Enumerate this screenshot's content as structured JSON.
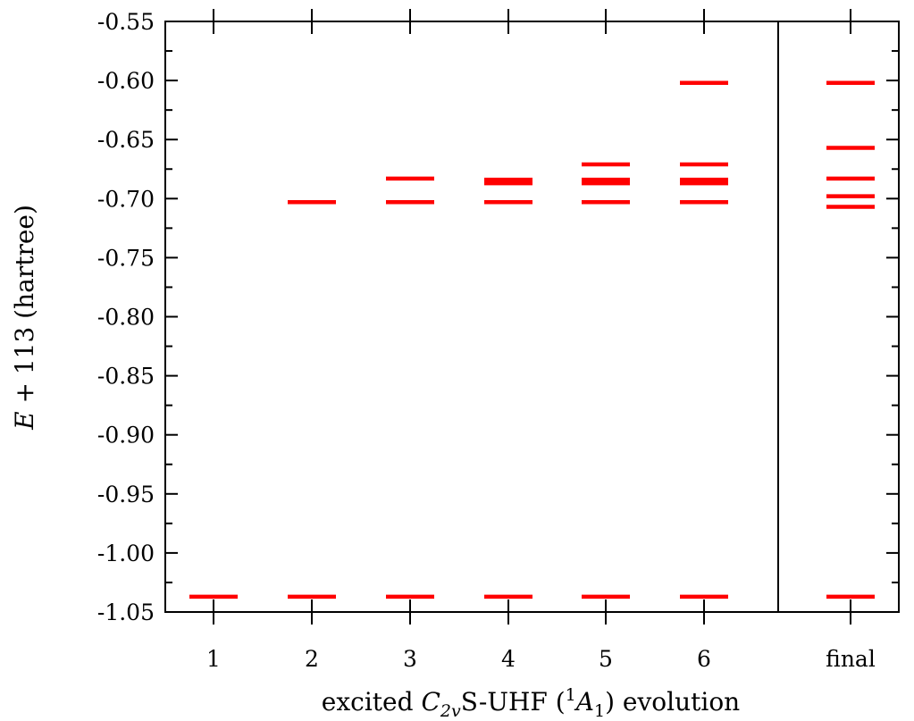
{
  "chart_data": {
    "type": "scatter",
    "mark": "horizontal-level",
    "ylabel": {
      "var": "E",
      "rest": " + 113 (hartree)"
    },
    "xlabel": {
      "pre": "excited ",
      "sym": "C",
      "sym_sub": "2v",
      "mid": "S-UHF (",
      "sup": "1",
      "state": "A",
      "state_sub": "1",
      "post": ") evolution"
    },
    "ylim": [
      -1.05,
      -0.55
    ],
    "y_ticks": [
      -0.55,
      -0.6,
      -0.65,
      -0.7,
      -0.75,
      -0.8,
      -0.85,
      -0.9,
      -0.95,
      -1.0,
      -1.05
    ],
    "y_tick_labels": [
      "-0.55",
      "-0.60",
      "-0.65",
      "-0.70",
      "-0.75",
      "-0.80",
      "-0.85",
      "-0.90",
      "-0.95",
      "-1.00",
      "-1.05"
    ],
    "categories": [
      "1",
      "2",
      "3",
      "4",
      "5",
      "6",
      "final"
    ],
    "level_color": "#ff0000",
    "levels": [
      {
        "category": "1",
        "values": [
          -1.037
        ]
      },
      {
        "category": "2",
        "values": [
          -0.703,
          -1.037
        ]
      },
      {
        "category": "3",
        "values": [
          -0.683,
          -0.703,
          -1.037
        ]
      },
      {
        "category": "4",
        "values": [
          -0.684,
          -0.687,
          -0.703,
          -1.037
        ]
      },
      {
        "category": "5",
        "values": [
          -0.671,
          -0.684,
          -0.687,
          -0.703,
          -1.037
        ]
      },
      {
        "category": "6",
        "values": [
          -0.602,
          -0.671,
          -0.684,
          -0.687,
          -0.703,
          -1.037
        ]
      },
      {
        "category": "final",
        "values": [
          -0.602,
          -0.657,
          -0.683,
          -0.698,
          -0.707,
          -1.037
        ]
      }
    ],
    "grid": false,
    "legend": "none"
  }
}
